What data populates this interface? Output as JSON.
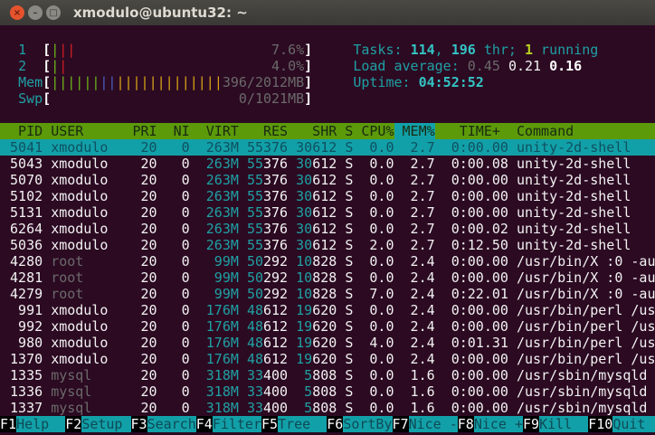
{
  "window": {
    "title": "xmodulo@ubuntu32: ~"
  },
  "colors": {
    "background": "#2c0a22",
    "header_bar": "#5c9a0a",
    "selected_row": "#12a0a8",
    "cyan": "#1fa0a4"
  },
  "meters": {
    "cpu1": {
      "label": "1",
      "bars": [
        "green",
        "red",
        "red"
      ],
      "value": "7.6%"
    },
    "cpu2": {
      "label": "2",
      "bars": [
        "green",
        "red"
      ],
      "value": "4.0%"
    },
    "mem": {
      "label": "Mem",
      "bars": {
        "green": 6,
        "blue": 2,
        "yellow": 13
      },
      "value": "396/2012MB"
    },
    "swp": {
      "label": "Swp",
      "value": "0/1021MB"
    }
  },
  "summary": {
    "tasks_label": "Tasks: ",
    "tasks": "114",
    "threads": "196",
    "thr_label": " thr; ",
    "running": "1",
    "running_label": " running",
    "load_label": "Load average: ",
    "load1": "0.45",
    "load5": "0.21",
    "load15": "0.16",
    "uptime_label": "Uptime: ",
    "uptime": "04:52:52"
  },
  "columns": [
    "PID",
    "USER",
    "PRI",
    "NI",
    "VIRT",
    "RES",
    "SHR",
    "S",
    "CPU%",
    "MEM%",
    "TIME+",
    "Command"
  ],
  "sort_column": "MEM%",
  "selected_pid": "5041",
  "processes": [
    [
      "5041",
      "xmodulo",
      "20",
      "0",
      "263M",
      "55376",
      "30612",
      "S",
      "0.0",
      "2.7",
      "0:00.00",
      "unity-2d-shell"
    ],
    [
      "5043",
      "xmodulo",
      "20",
      "0",
      "263M",
      "55376",
      "30612",
      "S",
      "0.0",
      "2.7",
      "0:00.08",
      "unity-2d-shell"
    ],
    [
      "5070",
      "xmodulo",
      "20",
      "0",
      "263M",
      "55376",
      "30612",
      "S",
      "0.0",
      "2.7",
      "0:00.00",
      "unity-2d-shell"
    ],
    [
      "5102",
      "xmodulo",
      "20",
      "0",
      "263M",
      "55376",
      "30612",
      "S",
      "0.0",
      "2.7",
      "0:00.00",
      "unity-2d-shell"
    ],
    [
      "5131",
      "xmodulo",
      "20",
      "0",
      "263M",
      "55376",
      "30612",
      "S",
      "0.0",
      "2.7",
      "0:00.00",
      "unity-2d-shell"
    ],
    [
      "6264",
      "xmodulo",
      "20",
      "0",
      "263M",
      "55376",
      "30612",
      "S",
      "0.0",
      "2.7",
      "0:00.02",
      "unity-2d-shell"
    ],
    [
      "5036",
      "xmodulo",
      "20",
      "0",
      "263M",
      "55376",
      "30612",
      "S",
      "2.0",
      "2.7",
      "0:12.50",
      "unity-2d-shell"
    ],
    [
      "4280",
      "root",
      "20",
      "0",
      "99M",
      "50292",
      "10828",
      "S",
      "0.0",
      "2.4",
      "0:00.00",
      "/usr/bin/X :0 -au"
    ],
    [
      "4281",
      "root",
      "20",
      "0",
      "99M",
      "50292",
      "10828",
      "S",
      "0.0",
      "2.4",
      "0:00.00",
      "/usr/bin/X :0 -au"
    ],
    [
      "4279",
      "root",
      "20",
      "0",
      "99M",
      "50292",
      "10828",
      "S",
      "7.0",
      "2.4",
      "0:22.01",
      "/usr/bin/X :0 -au"
    ],
    [
      "991",
      "xmodulo",
      "20",
      "0",
      "176M",
      "48612",
      "19620",
      "S",
      "0.0",
      "2.4",
      "0:00.00",
      "/usr/bin/perl /us"
    ],
    [
      "992",
      "xmodulo",
      "20",
      "0",
      "176M",
      "48612",
      "19620",
      "S",
      "0.0",
      "2.4",
      "0:00.00",
      "/usr/bin/perl /us"
    ],
    [
      "980",
      "xmodulo",
      "20",
      "0",
      "176M",
      "48612",
      "19620",
      "S",
      "4.0",
      "2.4",
      "0:01.31",
      "/usr/bin/perl /us"
    ],
    [
      "1370",
      "xmodulo",
      "20",
      "0",
      "176M",
      "48612",
      "19620",
      "S",
      "0.0",
      "2.4",
      "0:00.00",
      "/usr/bin/perl /us"
    ],
    [
      "1335",
      "mysql",
      "20",
      "0",
      "318M",
      "33400",
      "5808",
      "S",
      "0.0",
      "1.6",
      "0:00.00",
      "/usr/sbin/mysqld"
    ],
    [
      "1336",
      "mysql",
      "20",
      "0",
      "318M",
      "33400",
      "5808",
      "S",
      "0.0",
      "1.6",
      "0:00.00",
      "/usr/sbin/mysqld"
    ],
    [
      "1337",
      "mysql",
      "20",
      "0",
      "318M",
      "33400",
      "5808",
      "S",
      "0.0",
      "1.6",
      "0:00.00",
      "/usr/sbin/mysqld"
    ]
  ],
  "function_keys": [
    {
      "key": "F1",
      "label": "Help  "
    },
    {
      "key": "F2",
      "label": "Setup "
    },
    {
      "key": "F3",
      "label": "Search"
    },
    {
      "key": "F4",
      "label": "Filter"
    },
    {
      "key": "F5",
      "label": "Tree  "
    },
    {
      "key": "F6",
      "label": "SortBy"
    },
    {
      "key": "F7",
      "label": "Nice -"
    },
    {
      "key": "F8",
      "label": "Nice +"
    },
    {
      "key": "F9",
      "label": "Kill  "
    },
    {
      "key": "F10",
      "label": "Quit  "
    }
  ]
}
